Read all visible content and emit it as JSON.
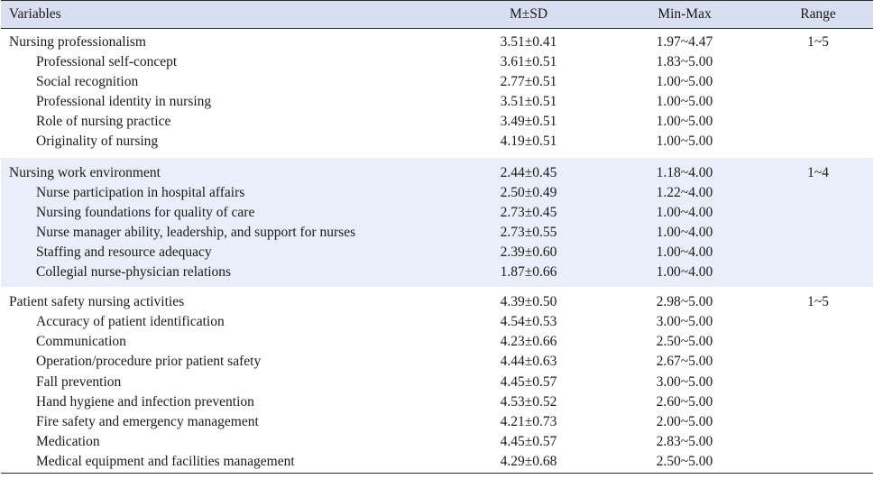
{
  "header": {
    "variables": "Variables",
    "msd": "M±SD",
    "minmax": "Min-Max",
    "range": "Range"
  },
  "groups": [
    {
      "title": "Nursing professionalism",
      "msd": "3.51±0.41",
      "minmax": "1.97~4.47",
      "range": "1~5",
      "items": [
        {
          "label": "Professional self-concept",
          "msd": "3.61±0.51",
          "minmax": "1.83~5.00"
        },
        {
          "label": "Social recognition",
          "msd": "2.77±0.51",
          "minmax": "1.00~5.00"
        },
        {
          "label": "Professional identity in nursing",
          "msd": "3.51±0.51",
          "minmax": "1.00~5.00"
        },
        {
          "label": "Role of nursing practice",
          "msd": "3.49±0.51",
          "minmax": "1.00~5.00"
        },
        {
          "label": "Originality of nursing",
          "msd": "4.19±0.51",
          "minmax": "1.00~5.00"
        }
      ]
    },
    {
      "title": "Nursing work environment",
      "msd": "2.44±0.45",
      "minmax": "1.18~4.00",
      "range": "1~4",
      "items": [
        {
          "label": "Nurse participation in hospital affairs",
          "msd": "2.50±0.49",
          "minmax": "1.22~4.00"
        },
        {
          "label": "Nursing foundations for quality of care",
          "msd": "2.73±0.45",
          "minmax": "1.00~4.00"
        },
        {
          "label": "Nurse manager ability, leadership, and support for nurses",
          "msd": "2.73±0.55",
          "minmax": "1.00~4.00"
        },
        {
          "label": "Staffing and resource adequacy",
          "msd": "2.39±0.60",
          "minmax": "1.00~4.00"
        },
        {
          "label": "Collegial nurse-physician relations",
          "msd": "1.87±0.66",
          "minmax": "1.00~4.00"
        }
      ]
    },
    {
      "title": "Patient safety nursing activities",
      "msd": "4.39±0.50",
      "minmax": "2.98~5.00",
      "range": "1~5",
      "items": [
        {
          "label": "Accuracy of patient identification",
          "msd": "4.54±0.53",
          "minmax": "3.00~5.00"
        },
        {
          "label": "Communication",
          "msd": "4.23±0.66",
          "minmax": "2.50~5.00"
        },
        {
          "label": "Operation/procedure prior patient safety",
          "msd": "4.44±0.63",
          "minmax": "2.67~5.00"
        },
        {
          "label": "Fall prevention",
          "msd": "4.45±0.57",
          "minmax": "3.00~5.00"
        },
        {
          "label": "Hand hygiene and infection prevention",
          "msd": "4.53±0.52",
          "minmax": "2.60~5.00"
        },
        {
          "label": "Fire safety and emergency management",
          "msd": "4.21±0.73",
          "minmax": "2.00~5.00"
        },
        {
          "label": "Medication",
          "msd": "4.45±0.57",
          "minmax": "2.83~5.00"
        },
        {
          "label": "Medical equipment and facilities management",
          "msd": "4.29±0.68",
          "minmax": "2.50~5.00"
        }
      ]
    }
  ]
}
